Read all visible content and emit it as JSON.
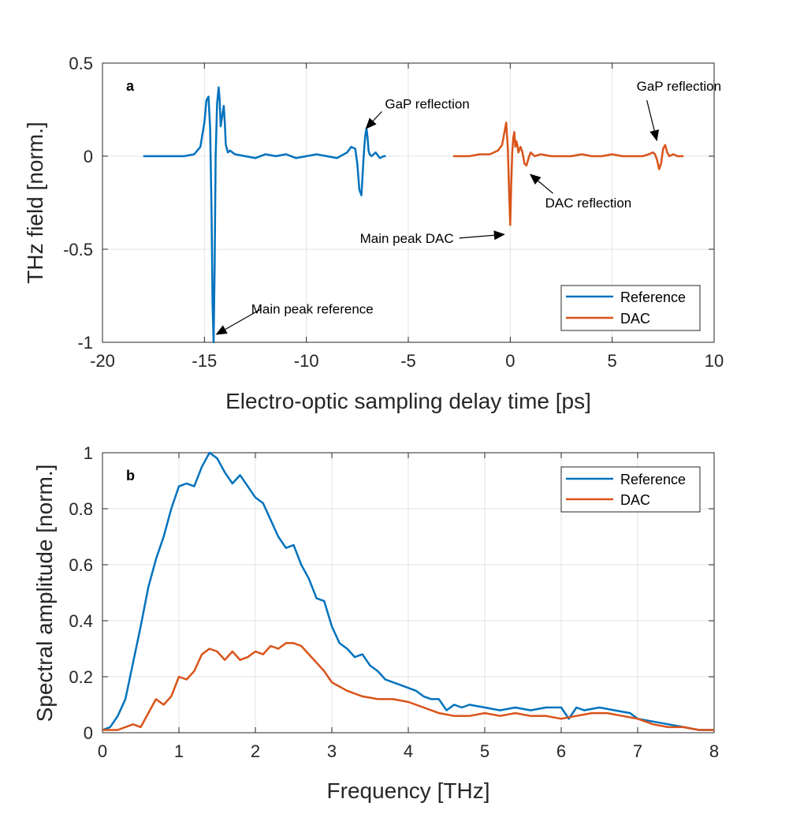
{
  "chart_data": [
    {
      "type": "line",
      "panel": "a",
      "xlabel": "Electro-optic sampling delay time [ps]",
      "ylabel": "THz field [norm.]",
      "xlim": [
        -20,
        10
      ],
      "ylim": [
        -1,
        0.5
      ],
      "xticks": [
        -20,
        -15,
        -10,
        -5,
        0,
        5,
        10
      ],
      "xtick_labels": [
        "-20",
        "-15",
        "-10",
        "-5",
        "0",
        "5",
        "10"
      ],
      "yticks": [
        -1,
        -0.5,
        0,
        0.5
      ],
      "ytick_labels": [
        "-1",
        "-0.5",
        "0",
        "0.5"
      ],
      "grid": true,
      "legend_position": "bottom-right",
      "series": [
        {
          "name": "Reference",
          "color": "#0072BD",
          "x": [
            -18.0,
            -17.0,
            -16.0,
            -15.5,
            -15.2,
            -15.0,
            -14.9,
            -14.8,
            -14.72,
            -14.65,
            -14.6,
            -14.55,
            -14.5,
            -14.45,
            -14.38,
            -14.3,
            -14.25,
            -14.2,
            -14.15,
            -14.05,
            -14.0,
            -13.95,
            -13.85,
            -13.75,
            -13.5,
            -13.0,
            -12.5,
            -12.0,
            -11.5,
            -11.0,
            -10.5,
            -10.0,
            -9.5,
            -9.0,
            -8.5,
            -8.0,
            -7.8,
            -7.6,
            -7.5,
            -7.4,
            -7.3,
            -7.25,
            -7.2,
            -7.15,
            -7.1,
            -7.05,
            -7.0,
            -6.95,
            -6.9,
            -6.8,
            -6.6,
            -6.4,
            -6.2,
            -6.1
          ],
          "y": [
            0.0,
            0.0,
            0.0,
            0.01,
            0.05,
            0.18,
            0.3,
            0.32,
            0.15,
            -0.3,
            -0.8,
            -1.0,
            -0.6,
            0.0,
            0.28,
            0.37,
            0.3,
            0.16,
            0.2,
            0.27,
            0.18,
            0.06,
            0.02,
            0.03,
            0.01,
            0.0,
            -0.01,
            0.01,
            0.0,
            0.01,
            -0.01,
            0.0,
            0.01,
            0.0,
            -0.01,
            0.02,
            0.05,
            0.04,
            -0.04,
            -0.18,
            -0.21,
            -0.12,
            -0.02,
            0.06,
            0.12,
            0.15,
            0.1,
            0.03,
            0.01,
            0.0,
            0.02,
            -0.01,
            0.0,
            0.0
          ]
        },
        {
          "name": "DAC",
          "color": "#D95319",
          "x": [
            -2.8,
            -2.0,
            -1.5,
            -1.0,
            -0.6,
            -0.4,
            -0.3,
            -0.2,
            -0.12,
            -0.05,
            0.0,
            0.05,
            0.1,
            0.15,
            0.2,
            0.25,
            0.3,
            0.35,
            0.4,
            0.5,
            0.6,
            0.7,
            0.8,
            0.9,
            1.0,
            1.2,
            1.5,
            2.0,
            2.5,
            3.0,
            3.5,
            4.0,
            4.5,
            5.0,
            5.5,
            6.0,
            6.5,
            6.8,
            7.0,
            7.1,
            7.2,
            7.3,
            7.4,
            7.5,
            7.6,
            7.7,
            7.8,
            8.0,
            8.2,
            8.5
          ],
          "y": [
            0.0,
            0.0,
            0.01,
            0.01,
            0.03,
            0.06,
            0.12,
            0.18,
            0.05,
            -0.2,
            -0.37,
            -0.15,
            0.02,
            0.1,
            0.13,
            0.05,
            0.08,
            0.06,
            0.02,
            0.05,
            0.02,
            -0.04,
            -0.05,
            -0.01,
            0.02,
            0.0,
            0.01,
            0.0,
            0.0,
            0.0,
            0.01,
            0.0,
            0.0,
            0.01,
            0.0,
            0.0,
            0.0,
            0.01,
            0.02,
            0.01,
            -0.02,
            -0.07,
            -0.04,
            0.04,
            0.06,
            0.02,
            0.0,
            0.01,
            0.0,
            0.0
          ]
        }
      ],
      "annotations": [
        {
          "text": "GaP reflection",
          "tip": [
            -7.1,
            0.145
          ],
          "tail": [
            -6.3,
            0.24
          ]
        },
        {
          "text": "GaP reflection",
          "tip": [
            7.2,
            0.08
          ],
          "tail": [
            6.7,
            0.3
          ]
        },
        {
          "text": "DAC reflection",
          "tip": [
            0.95,
            -0.095
          ],
          "tail": [
            2.1,
            -0.2
          ]
        },
        {
          "text": "Main peak DAC",
          "tip": [
            -0.25,
            -0.42
          ],
          "tail": [
            -2.5,
            -0.44
          ]
        },
        {
          "text": "Main peak reference",
          "tip": [
            -14.45,
            -0.96
          ],
          "tail": [
            -12.2,
            -0.82
          ]
        }
      ]
    },
    {
      "type": "line",
      "panel": "b",
      "xlabel": "Frequency [THz]",
      "ylabel": "Spectral amplitude [norm.]",
      "xlim": [
        0,
        8
      ],
      "ylim": [
        0,
        1
      ],
      "xticks": [
        0,
        1,
        2,
        3,
        4,
        5,
        6,
        7,
        8
      ],
      "xtick_labels": [
        "0",
        "1",
        "2",
        "3",
        "4",
        "5",
        "6",
        "7",
        "8"
      ],
      "yticks": [
        0,
        0.2,
        0.4,
        0.6,
        0.8,
        1
      ],
      "ytick_labels": [
        "0",
        "0.2",
        "0.4",
        "0.6",
        "0.8",
        "1"
      ],
      "grid": true,
      "legend_position": "top-right",
      "series": [
        {
          "name": "Reference",
          "color": "#0072BD",
          "x": [
            0.0,
            0.1,
            0.2,
            0.3,
            0.4,
            0.5,
            0.6,
            0.7,
            0.8,
            0.9,
            1.0,
            1.1,
            1.2,
            1.3,
            1.4,
            1.5,
            1.6,
            1.7,
            1.8,
            1.9,
            2.0,
            2.1,
            2.2,
            2.3,
            2.4,
            2.5,
            2.6,
            2.7,
            2.8,
            2.9,
            3.0,
            3.1,
            3.2,
            3.3,
            3.4,
            3.5,
            3.6,
            3.7,
            3.8,
            3.9,
            4.0,
            4.1,
            4.2,
            4.3,
            4.4,
            4.5,
            4.6,
            4.7,
            4.8,
            5.0,
            5.2,
            5.4,
            5.6,
            5.8,
            6.0,
            6.1,
            6.2,
            6.3,
            6.5,
            6.7,
            6.9,
            7.0,
            7.2,
            7.4,
            7.6,
            7.8,
            8.0
          ],
          "y": [
            0.01,
            0.02,
            0.06,
            0.12,
            0.25,
            0.38,
            0.52,
            0.62,
            0.7,
            0.8,
            0.88,
            0.89,
            0.88,
            0.95,
            1.0,
            0.98,
            0.93,
            0.89,
            0.92,
            0.88,
            0.84,
            0.82,
            0.76,
            0.7,
            0.66,
            0.67,
            0.6,
            0.55,
            0.48,
            0.47,
            0.38,
            0.32,
            0.3,
            0.27,
            0.28,
            0.24,
            0.22,
            0.19,
            0.18,
            0.17,
            0.16,
            0.15,
            0.13,
            0.12,
            0.12,
            0.08,
            0.1,
            0.09,
            0.1,
            0.09,
            0.08,
            0.09,
            0.08,
            0.09,
            0.09,
            0.05,
            0.09,
            0.08,
            0.09,
            0.08,
            0.07,
            0.05,
            0.04,
            0.03,
            0.02,
            0.01,
            0.01
          ]
        },
        {
          "name": "DAC",
          "color": "#D95319",
          "x": [
            0.0,
            0.2,
            0.4,
            0.5,
            0.6,
            0.7,
            0.8,
            0.9,
            1.0,
            1.1,
            1.2,
            1.3,
            1.4,
            1.5,
            1.6,
            1.7,
            1.8,
            1.9,
            2.0,
            2.1,
            2.2,
            2.3,
            2.4,
            2.5,
            2.6,
            2.7,
            2.8,
            2.9,
            3.0,
            3.2,
            3.4,
            3.6,
            3.8,
            4.0,
            4.2,
            4.4,
            4.6,
            4.8,
            5.0,
            5.2,
            5.4,
            5.6,
            5.8,
            6.0,
            6.2,
            6.4,
            6.6,
            6.8,
            7.0,
            7.2,
            7.4,
            7.6,
            7.8,
            8.0
          ],
          "y": [
            0.01,
            0.01,
            0.03,
            0.02,
            0.07,
            0.12,
            0.1,
            0.13,
            0.2,
            0.19,
            0.22,
            0.28,
            0.3,
            0.29,
            0.26,
            0.29,
            0.26,
            0.27,
            0.29,
            0.28,
            0.31,
            0.3,
            0.32,
            0.32,
            0.31,
            0.28,
            0.25,
            0.22,
            0.18,
            0.15,
            0.13,
            0.12,
            0.12,
            0.11,
            0.09,
            0.07,
            0.06,
            0.06,
            0.07,
            0.06,
            0.07,
            0.06,
            0.06,
            0.05,
            0.06,
            0.07,
            0.07,
            0.06,
            0.05,
            0.03,
            0.02,
            0.02,
            0.01,
            0.01
          ]
        }
      ]
    }
  ]
}
